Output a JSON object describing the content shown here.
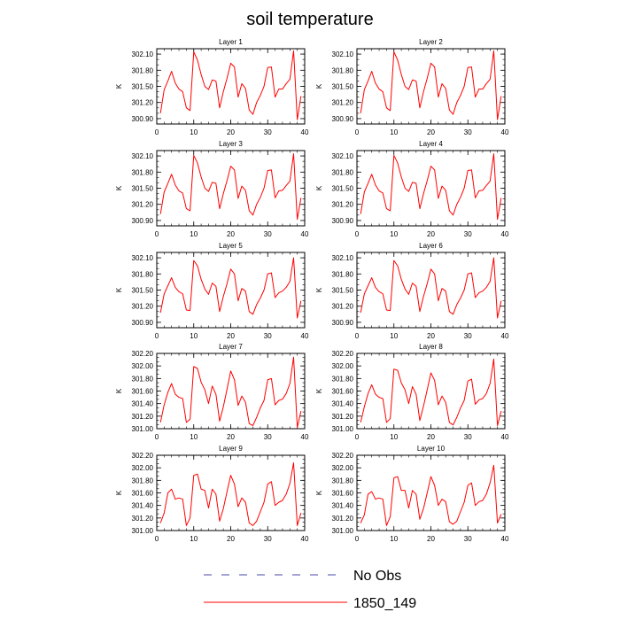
{
  "title": "soil temperature",
  "legend": {
    "entries": [
      {
        "label": "No Obs",
        "color": "#4a4aa8",
        "style": "dashed"
      },
      {
        "label": "1850_149",
        "color": "#ff0000",
        "style": "solid"
      }
    ]
  },
  "colors": {
    "series": "#ff0000",
    "axis": "#000000"
  },
  "chart_data": [
    {
      "type": "line",
      "title": "Layer 1",
      "ylabel": "K",
      "xlim": [
        0,
        40
      ],
      "xticks": [
        0,
        10,
        20,
        30,
        40
      ],
      "ylim": [
        300.8,
        302.2
      ],
      "yticks": [
        "300.90",
        "301.20",
        "301.50",
        "301.80",
        "302.10"
      ],
      "x": [
        1,
        2,
        3,
        4,
        5,
        6,
        7,
        8,
        9,
        10,
        11,
        12,
        13,
        14,
        15,
        16,
        17,
        18,
        19,
        20,
        21,
        22,
        23,
        24,
        25,
        26,
        27,
        28,
        29,
        30,
        31,
        32,
        33,
        34,
        35,
        36,
        37,
        38,
        39
      ],
      "series": [
        {
          "values": [
            301.0,
            301.44,
            301.6,
            301.78,
            301.56,
            301.45,
            301.4,
            301.1,
            301.05,
            302.14,
            301.99,
            301.72,
            301.5,
            301.44,
            301.62,
            301.6,
            301.1,
            301.4,
            301.65,
            301.93,
            301.86,
            301.3,
            301.55,
            301.46,
            301.06,
            300.98,
            301.2,
            301.33,
            301.5,
            301.85,
            301.86,
            301.3,
            301.45,
            301.45,
            301.55,
            301.63,
            302.16,
            300.88,
            301.32
          ]
        }
      ]
    },
    {
      "type": "line",
      "title": "Layer 2",
      "ylabel": "K",
      "xlim": [
        0,
        40
      ],
      "xticks": [
        0,
        10,
        20,
        30,
        40
      ],
      "ylim": [
        300.8,
        302.2
      ],
      "yticks": [
        "300.90",
        "301.20",
        "301.50",
        "301.80",
        "302.10"
      ],
      "x": [
        1,
        2,
        3,
        4,
        5,
        6,
        7,
        8,
        9,
        10,
        11,
        12,
        13,
        14,
        15,
        16,
        17,
        18,
        19,
        20,
        21,
        22,
        23,
        24,
        25,
        26,
        27,
        28,
        29,
        30,
        31,
        32,
        33,
        34,
        35,
        36,
        37,
        38,
        39
      ],
      "series": [
        {
          "values": [
            301.0,
            301.44,
            301.6,
            301.78,
            301.56,
            301.45,
            301.4,
            301.1,
            301.05,
            302.14,
            301.99,
            301.72,
            301.5,
            301.44,
            301.62,
            301.6,
            301.1,
            301.4,
            301.65,
            301.93,
            301.86,
            301.3,
            301.55,
            301.46,
            301.06,
            300.98,
            301.2,
            301.33,
            301.5,
            301.85,
            301.86,
            301.3,
            301.45,
            301.45,
            301.55,
            301.63,
            302.16,
            300.88,
            301.32
          ]
        }
      ]
    },
    {
      "type": "line",
      "title": "Layer 3",
      "ylabel": "K",
      "xlim": [
        0,
        40
      ],
      "xticks": [
        0,
        10,
        20,
        30,
        40
      ],
      "ylim": [
        300.8,
        302.2
      ],
      "yticks": [
        "300.90",
        "301.20",
        "301.50",
        "301.80",
        "302.10"
      ],
      "x": [
        1,
        2,
        3,
        4,
        5,
        6,
        7,
        8,
        9,
        10,
        11,
        12,
        13,
        14,
        15,
        16,
        17,
        18,
        19,
        20,
        21,
        22,
        23,
        24,
        25,
        26,
        27,
        28,
        29,
        30,
        31,
        32,
        33,
        34,
        35,
        36,
        37,
        38,
        39
      ],
      "series": [
        {
          "values": [
            301.02,
            301.43,
            301.59,
            301.76,
            301.56,
            301.45,
            301.41,
            301.12,
            301.08,
            302.11,
            301.97,
            301.71,
            301.5,
            301.44,
            301.61,
            301.59,
            301.12,
            301.4,
            301.64,
            301.91,
            301.84,
            301.31,
            301.54,
            301.46,
            301.08,
            301.0,
            301.2,
            301.33,
            301.5,
            301.83,
            301.84,
            301.32,
            301.45,
            301.46,
            301.55,
            301.63,
            302.14,
            300.92,
            301.32
          ]
        }
      ]
    },
    {
      "type": "line",
      "title": "Layer 4",
      "ylabel": "K",
      "xlim": [
        0,
        40
      ],
      "xticks": [
        0,
        10,
        20,
        30,
        40
      ],
      "ylim": [
        300.8,
        302.2
      ],
      "yticks": [
        "300.90",
        "301.20",
        "301.50",
        "301.80",
        "302.10"
      ],
      "x": [
        1,
        2,
        3,
        4,
        5,
        6,
        7,
        8,
        9,
        10,
        11,
        12,
        13,
        14,
        15,
        16,
        17,
        18,
        19,
        20,
        21,
        22,
        23,
        24,
        25,
        26,
        27,
        28,
        29,
        30,
        31,
        32,
        33,
        34,
        35,
        36,
        37,
        38,
        39
      ],
      "series": [
        {
          "values": [
            301.02,
            301.43,
            301.59,
            301.76,
            301.56,
            301.45,
            301.41,
            301.12,
            301.08,
            302.11,
            301.97,
            301.71,
            301.5,
            301.44,
            301.61,
            301.59,
            301.12,
            301.4,
            301.64,
            301.91,
            301.84,
            301.31,
            301.54,
            301.46,
            301.08,
            301.0,
            301.2,
            301.33,
            301.5,
            301.83,
            301.84,
            301.32,
            301.45,
            301.46,
            301.55,
            301.63,
            302.14,
            300.92,
            301.32
          ]
        }
      ]
    },
    {
      "type": "line",
      "title": "Layer 5",
      "ylabel": "K",
      "xlim": [
        0,
        40
      ],
      "xticks": [
        0,
        10,
        20,
        30,
        40
      ],
      "ylim": [
        300.8,
        302.2
      ],
      "yticks": [
        "300.90",
        "301.20",
        "301.50",
        "301.80",
        "302.10"
      ],
      "x": [
        1,
        2,
        3,
        4,
        5,
        6,
        7,
        8,
        9,
        10,
        11,
        12,
        13,
        14,
        15,
        16,
        17,
        18,
        19,
        20,
        21,
        22,
        23,
        24,
        25,
        26,
        27,
        28,
        29,
        30,
        31,
        32,
        33,
        34,
        35,
        36,
        37,
        38,
        39
      ],
      "series": [
        {
          "values": [
            301.08,
            301.43,
            301.58,
            301.73,
            301.55,
            301.47,
            301.43,
            301.13,
            301.12,
            302.05,
            301.95,
            301.7,
            301.52,
            301.42,
            301.63,
            301.57,
            301.1,
            301.38,
            301.62,
            301.89,
            301.8,
            301.3,
            301.53,
            301.48,
            301.1,
            301.05,
            301.23,
            301.35,
            301.5,
            301.8,
            301.82,
            301.36,
            301.45,
            301.48,
            301.55,
            301.66,
            302.1,
            300.98,
            301.3
          ]
        }
      ]
    },
    {
      "type": "line",
      "title": "Layer 6",
      "ylabel": "K",
      "xlim": [
        0,
        40
      ],
      "xticks": [
        0,
        10,
        20,
        30,
        40
      ],
      "ylim": [
        300.8,
        302.2
      ],
      "yticks": [
        "300.90",
        "301.20",
        "301.50",
        "301.80",
        "302.10"
      ],
      "x": [
        1,
        2,
        3,
        4,
        5,
        6,
        7,
        8,
        9,
        10,
        11,
        12,
        13,
        14,
        15,
        16,
        17,
        18,
        19,
        20,
        21,
        22,
        23,
        24,
        25,
        26,
        27,
        28,
        29,
        30,
        31,
        32,
        33,
        34,
        35,
        36,
        37,
        38,
        39
      ],
      "series": [
        {
          "values": [
            301.08,
            301.43,
            301.58,
            301.73,
            301.55,
            301.47,
            301.43,
            301.13,
            301.12,
            302.05,
            301.95,
            301.7,
            301.52,
            301.42,
            301.63,
            301.57,
            301.1,
            301.38,
            301.62,
            301.89,
            301.8,
            301.3,
            301.53,
            301.48,
            301.1,
            301.05,
            301.23,
            301.35,
            301.5,
            301.8,
            301.82,
            301.36,
            301.45,
            301.48,
            301.55,
            301.66,
            302.1,
            300.98,
            301.3
          ]
        }
      ]
    },
    {
      "type": "line",
      "title": "Layer 7",
      "ylabel": "K",
      "xlim": [
        0,
        40
      ],
      "xticks": [
        0,
        10,
        20,
        30,
        40
      ],
      "ylim": [
        301.0,
        302.2
      ],
      "yticks": [
        "301.00",
        "301.20",
        "301.40",
        "301.60",
        "301.80",
        "302.00",
        "302.20"
      ],
      "x": [
        1,
        2,
        3,
        4,
        5,
        6,
        7,
        8,
        9,
        10,
        11,
        12,
        13,
        14,
        15,
        16,
        17,
        18,
        19,
        20,
        21,
        22,
        23,
        24,
        25,
        26,
        27,
        28,
        29,
        30,
        31,
        32,
        33,
        34,
        35,
        36,
        37,
        38,
        39
      ],
      "series": [
        {
          "values": [
            301.1,
            301.38,
            301.58,
            301.72,
            301.55,
            301.5,
            301.48,
            301.1,
            301.15,
            301.99,
            301.96,
            301.74,
            301.62,
            301.4,
            301.68,
            301.55,
            301.12,
            301.35,
            301.63,
            301.92,
            301.78,
            301.37,
            301.52,
            301.42,
            301.08,
            301.05,
            301.18,
            301.33,
            301.45,
            301.78,
            301.8,
            301.38,
            301.45,
            301.47,
            301.56,
            301.72,
            302.14,
            301.02,
            301.28
          ]
        }
      ]
    },
    {
      "type": "line",
      "title": "Layer 8",
      "ylabel": "K",
      "xlim": [
        0,
        40
      ],
      "xticks": [
        0,
        10,
        20,
        30,
        40
      ],
      "ylim": [
        301.0,
        302.2
      ],
      "yticks": [
        "301.00",
        "301.20",
        "301.40",
        "301.60",
        "301.80",
        "302.00",
        "302.20"
      ],
      "x": [
        1,
        2,
        3,
        4,
        5,
        6,
        7,
        8,
        9,
        10,
        11,
        12,
        13,
        14,
        15,
        16,
        17,
        18,
        19,
        20,
        21,
        22,
        23,
        24,
        25,
        26,
        27,
        28,
        29,
        30,
        31,
        32,
        33,
        34,
        35,
        36,
        37,
        38,
        39
      ],
      "series": [
        {
          "values": [
            301.1,
            301.35,
            301.56,
            301.7,
            301.55,
            301.5,
            301.48,
            301.1,
            301.16,
            301.95,
            301.93,
            301.73,
            301.62,
            301.4,
            301.67,
            301.55,
            301.13,
            301.36,
            301.62,
            301.89,
            301.77,
            301.38,
            301.52,
            301.42,
            301.1,
            301.06,
            301.18,
            301.33,
            301.45,
            301.76,
            301.79,
            301.39,
            301.46,
            301.48,
            301.56,
            301.72,
            302.11,
            301.05,
            301.28
          ]
        }
      ]
    },
    {
      "type": "line",
      "title": "Layer 9",
      "ylabel": "K",
      "xlim": [
        0,
        40
      ],
      "xticks": [
        0,
        10,
        20,
        30,
        40
      ],
      "ylim": [
        301.0,
        302.2
      ],
      "yticks": [
        "301.00",
        "301.20",
        "301.40",
        "301.60",
        "301.80",
        "302.00",
        "302.20"
      ],
      "x": [
        1,
        2,
        3,
        4,
        5,
        6,
        7,
        8,
        9,
        10,
        11,
        12,
        13,
        14,
        15,
        16,
        17,
        18,
        19,
        20,
        21,
        22,
        23,
        24,
        25,
        26,
        27,
        28,
        29,
        30,
        31,
        32,
        33,
        34,
        35,
        36,
        37,
        38,
        39
      ],
      "series": [
        {
          "values": [
            301.12,
            301.28,
            301.6,
            301.66,
            301.5,
            301.52,
            301.5,
            301.08,
            301.2,
            301.88,
            301.9,
            301.66,
            301.64,
            301.36,
            301.66,
            301.58,
            301.15,
            301.35,
            301.62,
            301.88,
            301.74,
            301.38,
            301.52,
            301.45,
            301.12,
            301.08,
            301.15,
            301.3,
            301.45,
            301.74,
            301.78,
            301.4,
            301.45,
            301.48,
            301.58,
            301.75,
            302.08,
            301.08,
            301.28
          ]
        }
      ]
    },
    {
      "type": "line",
      "title": "Layer 10",
      "ylabel": "K",
      "xlim": [
        0,
        40
      ],
      "xticks": [
        0,
        10,
        20,
        30,
        40
      ],
      "ylim": [
        301.0,
        302.2
      ],
      "yticks": [
        "301.00",
        "301.20",
        "301.40",
        "301.60",
        "301.80",
        "302.00",
        "302.20"
      ],
      "x": [
        1,
        2,
        3,
        4,
        5,
        6,
        7,
        8,
        9,
        10,
        11,
        12,
        13,
        14,
        15,
        16,
        17,
        18,
        19,
        20,
        21,
        22,
        23,
        24,
        25,
        26,
        27,
        28,
        29,
        30,
        31,
        32,
        33,
        34,
        35,
        36,
        37,
        38,
        39
      ],
      "series": [
        {
          "values": [
            301.12,
            301.25,
            301.58,
            301.62,
            301.5,
            301.52,
            301.5,
            301.08,
            301.22,
            301.84,
            301.86,
            301.64,
            301.64,
            301.36,
            301.64,
            301.58,
            301.18,
            301.35,
            301.6,
            301.86,
            301.72,
            301.4,
            301.5,
            301.46,
            301.14,
            301.1,
            301.15,
            301.3,
            301.45,
            301.72,
            301.76,
            301.4,
            301.46,
            301.48,
            301.58,
            301.76,
            302.04,
            301.12,
            301.26
          ]
        }
      ]
    }
  ]
}
